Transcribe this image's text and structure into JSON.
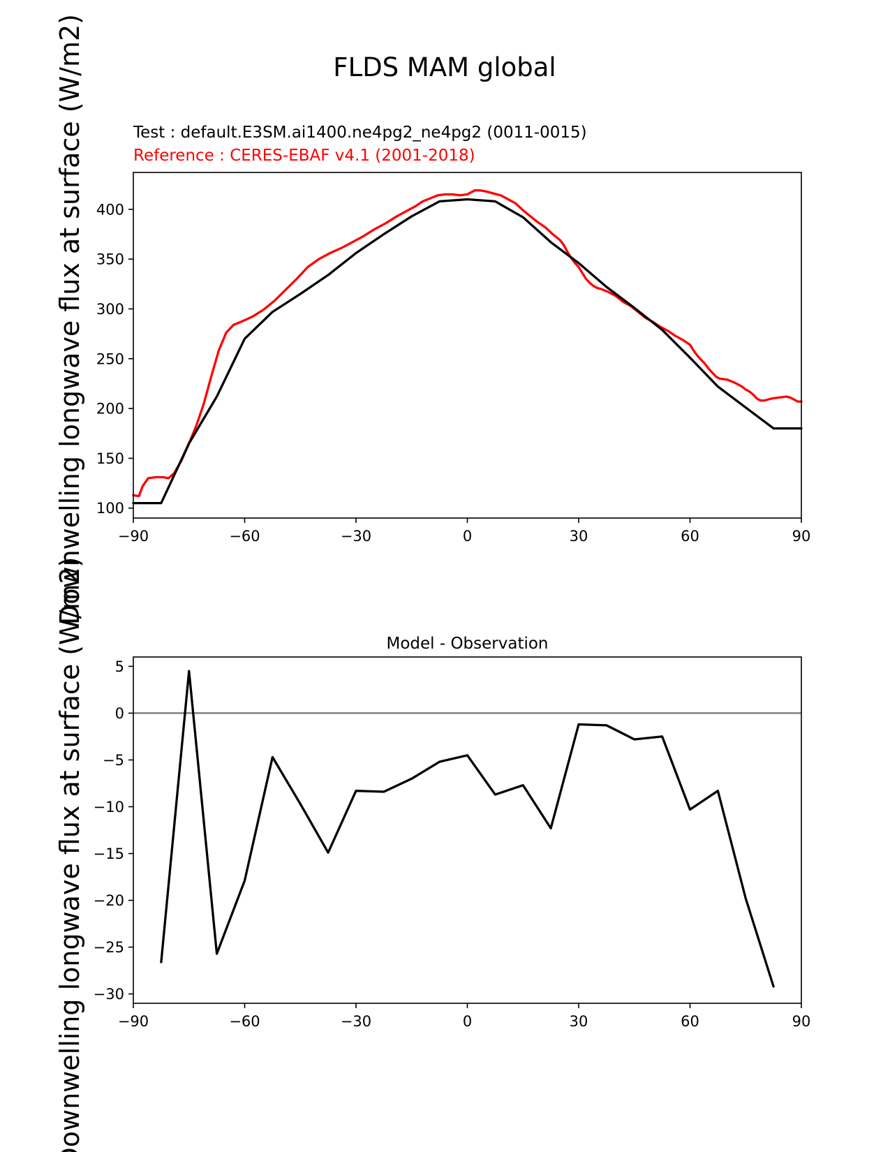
{
  "figure": {
    "title": "FLDS MAM global",
    "test_label": "Test : default.E3SM.ai1400.ne4pg2_ne4pg2 (0011-0015)",
    "reference_label": "Reference : CERES-EBAF v4.1 (2001-2018)",
    "ylabel": "Downwelling longwave flux at surface (W/m2)",
    "colors": {
      "test": "#000000",
      "reference": "#ff0000",
      "zero_line": "#808080"
    }
  },
  "chart_data": [
    {
      "type": "line",
      "title": "",
      "xlabel": "",
      "ylabel": "Downwelling longwave flux at surface (W/m2)",
      "xlim": [
        -90,
        90
      ],
      "ylim": [
        90,
        437
      ],
      "xticks": [
        -90,
        -60,
        -30,
        0,
        30,
        60,
        90
      ],
      "yticks": [
        100,
        150,
        200,
        250,
        300,
        350,
        400
      ],
      "xtick_labels": [
        "−90",
        "−60",
        "−30",
        "0",
        "30",
        "60",
        "90"
      ],
      "ytick_labels": [
        "100",
        "150",
        "200",
        "250",
        "300",
        "350",
        "400"
      ],
      "series": [
        {
          "name": "Reference : CERES-EBAF v4.1 (2001-2018)",
          "color": "#ff0000",
          "x": [
            -90,
            -88.5,
            -87.5,
            -86,
            -84,
            -82,
            -80.5,
            -79,
            -77,
            -75,
            -73,
            -71,
            -69,
            -67,
            -65,
            -63,
            -61,
            -58,
            -55,
            -52,
            -49,
            -46,
            -43,
            -40,
            -37,
            -34,
            -31,
            -28,
            -25,
            -22,
            -19,
            -16,
            -14,
            -12,
            -10,
            -8,
            -6,
            -4,
            -2,
            0,
            1,
            2,
            3.5,
            5,
            7,
            9,
            11,
            13,
            15,
            17,
            19,
            21,
            23,
            25,
            26,
            27,
            28,
            29,
            30,
            31,
            32,
            33,
            34,
            35,
            36,
            38,
            40,
            42,
            44,
            46,
            48,
            50,
            52,
            54,
            56,
            58,
            60,
            61,
            62,
            63,
            64,
            65,
            66,
            67,
            68,
            70,
            72,
            74,
            75,
            76,
            77,
            78,
            79,
            80,
            82,
            84,
            86,
            87,
            88,
            89,
            90
          ],
          "y": [
            113,
            112,
            122,
            130,
            131,
            131,
            130,
            135,
            148,
            165,
            183,
            205,
            232,
            258,
            276,
            284,
            287,
            292,
            299,
            308,
            319,
            330,
            342,
            350,
            356,
            361,
            367,
            373,
            380,
            386,
            393,
            399,
            403,
            408,
            411,
            414,
            415,
            415,
            414,
            415,
            417,
            419,
            419,
            418,
            416,
            414,
            410,
            406,
            399,
            393,
            387,
            382,
            375,
            369,
            364,
            357,
            351,
            346,
            342,
            336,
            330,
            326,
            323,
            321,
            320,
            317,
            313,
            307,
            303,
            297,
            291,
            287,
            282,
            278,
            273,
            269,
            264,
            258,
            253,
            249,
            245,
            240,
            236,
            232,
            230,
            229,
            226,
            222,
            219,
            217,
            214,
            210,
            208,
            208,
            210,
            211,
            212,
            211,
            209,
            207,
            207
          ]
        },
        {
          "name": "Test : default.E3SM.ai1400.ne4pg2_ne4pg2 (0011-0015)",
          "color": "#000000",
          "x": [
            -90,
            -82.5,
            -75,
            -67.5,
            -60,
            -52.5,
            -45,
            -37.5,
            -30,
            -22.5,
            -15,
            -7.5,
            0,
            7.5,
            15,
            22.5,
            30,
            37.5,
            45,
            52.5,
            60,
            67.5,
            75,
            82.5,
            90
          ],
          "y": [
            105,
            105,
            165,
            212,
            270,
            297,
            315,
            334,
            356,
            375,
            393,
            408,
            410,
            408,
            392,
            367,
            346,
            322,
            301,
            279,
            251,
            222,
            201,
            180,
            180
          ]
        }
      ]
    },
    {
      "type": "line",
      "title": "Model - Observation",
      "xlabel": "",
      "ylabel": "",
      "xlim": [
        -90,
        90
      ],
      "ylim": [
        -31,
        6
      ],
      "xticks": [
        -90,
        -60,
        -30,
        0,
        30,
        60,
        90
      ],
      "yticks": [
        5,
        0,
        -5,
        -10,
        -15,
        -20,
        -25,
        -30
      ],
      "xtick_labels": [
        "−90",
        "−60",
        "−30",
        "0",
        "30",
        "60",
        "90"
      ],
      "ytick_labels": [
        "5",
        "0",
        "−5",
        "−10",
        "−15",
        "−20",
        "−25",
        "−30"
      ],
      "zero_line": 0,
      "series": [
        {
          "name": "",
          "color": "#000000",
          "x": [
            -82.5,
            -75,
            -67.5,
            -60,
            -52.5,
            -45,
            -37.5,
            -30,
            -22.5,
            -15,
            -7.5,
            0,
            7.5,
            15,
            22.5,
            30,
            37.5,
            45,
            52.5,
            60,
            67.5,
            75,
            82.5
          ],
          "y": [
            -26.6,
            4.5,
            -25.7,
            -17.9,
            -4.7,
            -9.7,
            -14.9,
            -8.3,
            -8.4,
            -7,
            -5.2,
            -4.5,
            -8.7,
            -7.7,
            -12.3,
            -1.2,
            -1.3,
            -2.8,
            -2.5,
            -10.3,
            -8.3,
            -19.8,
            -29.2
          ]
        }
      ]
    }
  ]
}
